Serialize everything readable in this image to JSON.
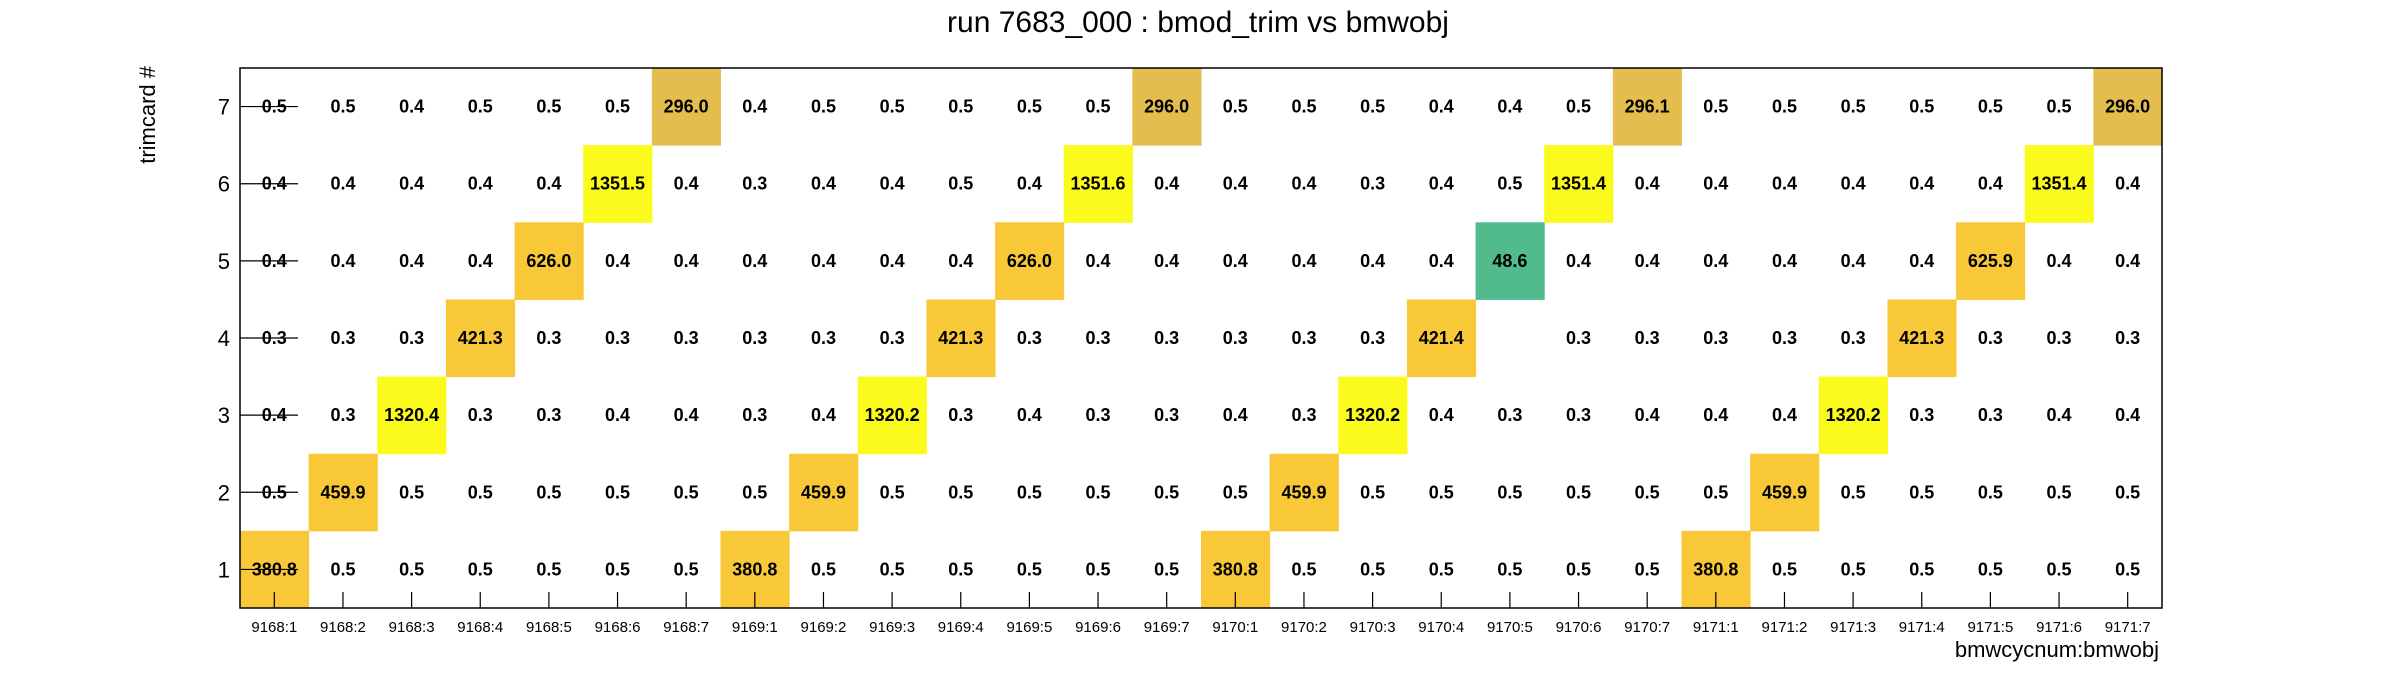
{
  "chart_data": {
    "type": "heatmap",
    "title": "run 7683_000 : bmod_trim vs bmwobj",
    "xlabel": "bmwcycnum:bmwobj",
    "ylabel": "trimcard #",
    "x_categories": [
      "9168:1",
      "9168:2",
      "9168:3",
      "9168:4",
      "9168:5",
      "9168:6",
      "9168:7",
      "9169:1",
      "9169:2",
      "9169:3",
      "9169:4",
      "9169:5",
      "9169:6",
      "9169:7",
      "9170:1",
      "9170:2",
      "9170:3",
      "9170:4",
      "9170:5",
      "9170:6",
      "9170:7",
      "9171:1",
      "9171:2",
      "9171:3",
      "9171:4",
      "9171:5",
      "9171:6",
      "9171:7"
    ],
    "y_categories": [
      "1",
      "2",
      "3",
      "4",
      "5",
      "6",
      "7"
    ],
    "values": [
      [
        380.8,
        0.5,
        0.5,
        0.5,
        0.5,
        0.5,
        0.5,
        380.8,
        0.5,
        0.5,
        0.5,
        0.5,
        0.5,
        0.5,
        380.8,
        0.5,
        0.5,
        0.5,
        0.5,
        0.5,
        0.5,
        380.8,
        0.5,
        0.5,
        0.5,
        0.5,
        0.5,
        0.5
      ],
      [
        0.5,
        459.9,
        0.5,
        0.5,
        0.5,
        0.5,
        0.5,
        0.5,
        459.9,
        0.5,
        0.5,
        0.5,
        0.5,
        0.5,
        0.5,
        459.9,
        0.5,
        0.5,
        0.5,
        0.5,
        0.5,
        0.5,
        459.9,
        0.5,
        0.5,
        0.5,
        0.5,
        0.5
      ],
      [
        0.4,
        0.3,
        1320.4,
        0.3,
        0.3,
        0.4,
        0.4,
        0.3,
        0.4,
        1320.2,
        0.3,
        0.4,
        0.3,
        0.3,
        0.4,
        0.3,
        1320.2,
        0.4,
        0.3,
        0.3,
        0.4,
        0.4,
        0.4,
        1320.2,
        0.3,
        0.3,
        0.4,
        0.4
      ],
      [
        0.3,
        0.3,
        0.3,
        421.3,
        0.3,
        0.3,
        0.3,
        0.3,
        0.3,
        0.3,
        421.3,
        0.3,
        0.3,
        0.3,
        0.3,
        0.3,
        0.3,
        421.4,
        null,
        0.3,
        0.3,
        0.3,
        0.3,
        0.3,
        421.3,
        0.3,
        0.3,
        0.3
      ],
      [
        0.4,
        0.4,
        0.4,
        0.4,
        626.0,
        0.4,
        0.4,
        0.4,
        0.4,
        0.4,
        0.4,
        626.0,
        0.4,
        0.4,
        0.4,
        0.4,
        0.4,
        0.4,
        48.6,
        0.4,
        0.4,
        0.4,
        0.4,
        0.4,
        0.4,
        625.9,
        0.4,
        0.4
      ],
      [
        0.4,
        0.4,
        0.4,
        0.4,
        0.4,
        1351.5,
        0.4,
        0.3,
        0.4,
        0.4,
        0.5,
        0.4,
        1351.6,
        0.4,
        0.4,
        0.4,
        0.3,
        0.4,
        0.5,
        1351.4,
        0.4,
        0.4,
        0.4,
        0.4,
        0.4,
        0.4,
        1351.4,
        0.4
      ],
      [
        0.5,
        0.5,
        0.4,
        0.5,
        0.5,
        0.5,
        296.0,
        0.4,
        0.5,
        0.5,
        0.5,
        0.5,
        0.5,
        296.0,
        0.5,
        0.5,
        0.5,
        0.4,
        0.4,
        0.5,
        296.1,
        0.5,
        0.5,
        0.5,
        0.5,
        0.5,
        0.5,
        296.0
      ]
    ],
    "grid": false,
    "legend": "none",
    "colors": {
      "low_band": "#52bb8e",
      "mid_band": "#e3be4f",
      "mid_high_band": "#f8c838",
      "high_band": "#fafa1c"
    }
  }
}
